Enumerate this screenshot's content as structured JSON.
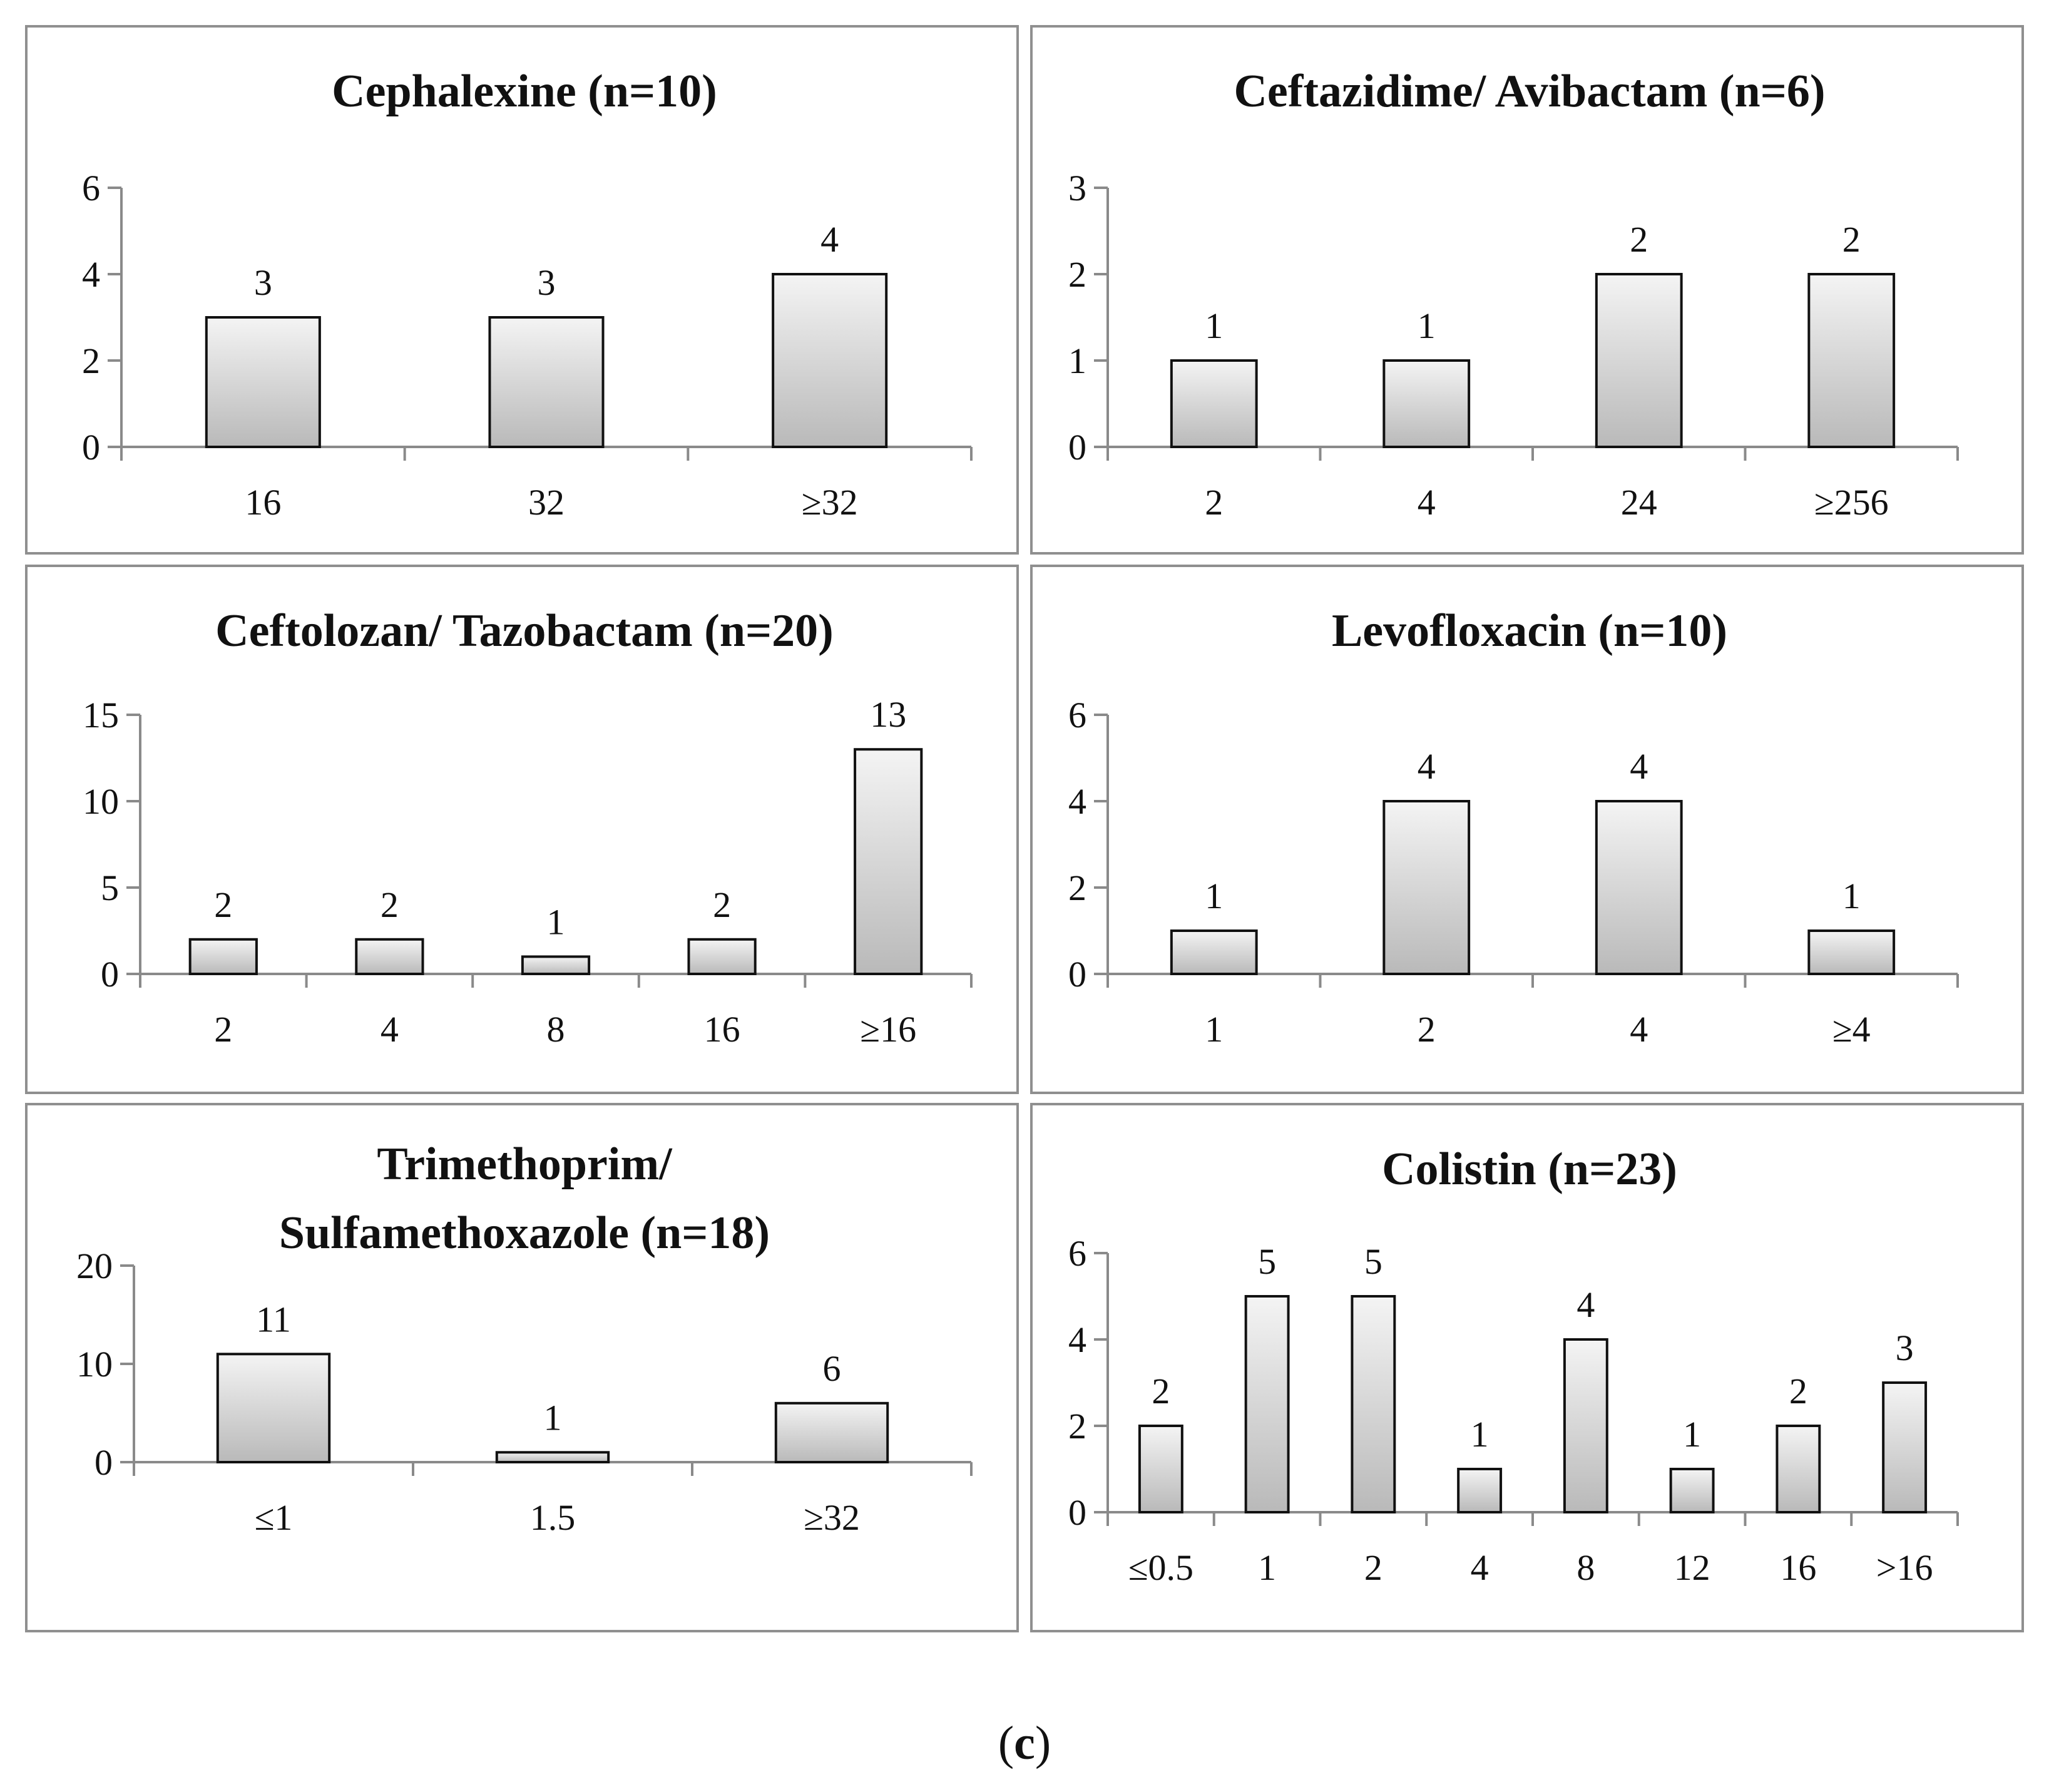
{
  "figure": {
    "caption_open": "(",
    "caption_letter": "c",
    "caption_close": ")"
  },
  "chart_data": [
    {
      "type": "bar",
      "title": "Cephalexine (n=10)",
      "categories": [
        "16",
        "32",
        "≥32"
      ],
      "values": [
        3,
        3,
        4
      ],
      "ylim": [
        0,
        6
      ],
      "yticks": [
        0,
        2,
        4,
        6
      ],
      "xlabel": "",
      "ylabel": "",
      "data_labels": true,
      "grid": false,
      "legend": "none"
    },
    {
      "type": "bar",
      "title": "Ceftazidime/ Avibactam (n=6)",
      "categories": [
        "2",
        "4",
        "24",
        "≥256"
      ],
      "values": [
        1,
        1,
        2,
        2
      ],
      "ylim": [
        0,
        3
      ],
      "yticks": [
        0,
        1,
        2,
        3
      ],
      "xlabel": "",
      "ylabel": "",
      "data_labels": true,
      "grid": false,
      "legend": "none"
    },
    {
      "type": "bar",
      "title": "Ceftolozan/ Tazobactam (n=20)",
      "categories": [
        "2",
        "4",
        "8",
        "16",
        "≥16"
      ],
      "values": [
        2,
        2,
        1,
        2,
        13
      ],
      "ylim": [
        0,
        15
      ],
      "yticks": [
        0,
        5,
        10,
        15
      ],
      "xlabel": "",
      "ylabel": "",
      "data_labels": true,
      "grid": false,
      "legend": "none"
    },
    {
      "type": "bar",
      "title": "Levofloxacin (n=10)",
      "categories": [
        "1",
        "2",
        "4",
        "≥4"
      ],
      "values": [
        1,
        4,
        4,
        1
      ],
      "ylim": [
        0,
        6
      ],
      "yticks": [
        0,
        2,
        4,
        6
      ],
      "xlabel": "",
      "ylabel": "",
      "data_labels": true,
      "grid": false,
      "legend": "none"
    },
    {
      "type": "bar",
      "title": [
        "Trimethoprim/",
        "Sulfamethoxazole (n=18)"
      ],
      "categories": [
        "≤1",
        "1.5",
        "≥32"
      ],
      "values": [
        11,
        1,
        6
      ],
      "ylim": [
        0,
        20
      ],
      "yticks": [
        0,
        10,
        20
      ],
      "xlabel": "",
      "ylabel": "",
      "data_labels": true,
      "grid": false,
      "legend": "none"
    },
    {
      "type": "bar",
      "title": "Colistin (n=23)",
      "categories": [
        "≤0.5",
        "1",
        "2",
        "4",
        "8",
        "12",
        "16",
        ">16"
      ],
      "values": [
        2,
        5,
        5,
        1,
        4,
        1,
        2,
        3
      ],
      "ylim": [
        0,
        6
      ],
      "yticks": [
        0,
        2,
        4,
        6
      ],
      "xlabel": "",
      "ylabel": "",
      "data_labels": true,
      "grid": false,
      "legend": "none"
    }
  ]
}
